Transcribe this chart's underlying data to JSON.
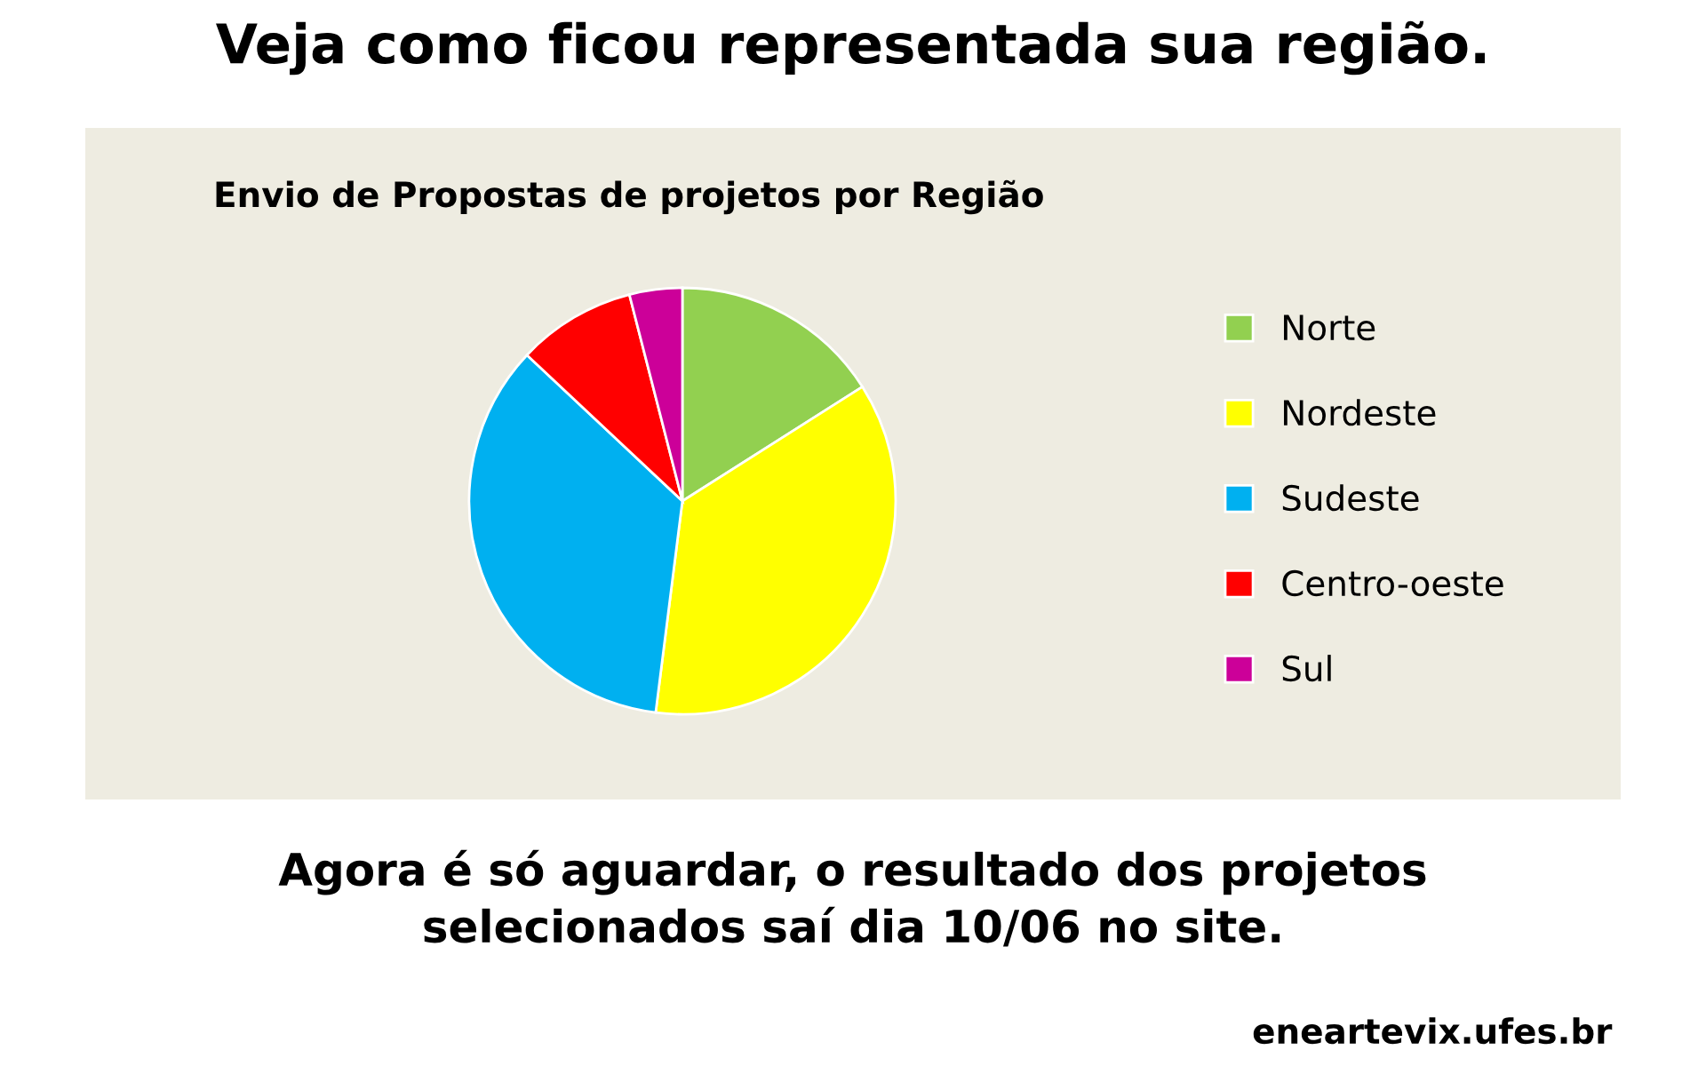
{
  "chart_data": {
    "type": "pie",
    "title": "Veja como ficou representada sua região.",
    "subtitle": "Envio de Propostas de projetos por Região",
    "categories": [
      "Norte",
      "Nordeste",
      "Sudeste",
      "Centro-oeste",
      "Sul"
    ],
    "values": [
      16,
      36,
      35,
      9,
      4
    ],
    "colors": [
      "#92d050",
      "#ffff00",
      "#00b0f0",
      "#ff0000",
      "#cc0099"
    ],
    "legend": "right",
    "annotations": [
      "Agora é só aguardar, o resultado dos projetos\nselecionados saí dia 10/06 no site.",
      "eneartevix.ufes.br"
    ]
  }
}
